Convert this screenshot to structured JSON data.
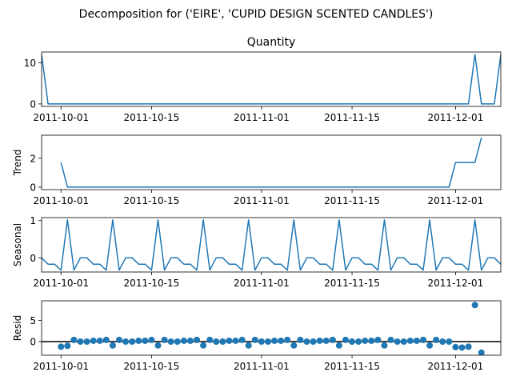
{
  "figure": {
    "title": "Decomposition for ('EIRE', 'CUPID DESIGN SCENTED CANDLES')"
  },
  "chart_data": [
    {
      "type": "line",
      "name": "observed",
      "title": "Quantity",
      "ylabel": "",
      "xlim": [
        "2011-09-28",
        "2011-12-08"
      ],
      "ylim": [
        -0.6,
        12.6
      ],
      "yticks": [
        0,
        10
      ],
      "xticks": [
        "2011-10-01",
        "2011-10-15",
        "2011-11-01",
        "2011-11-15",
        "2011-12-01"
      ],
      "color": "#1f77b4",
      "x": [
        "2011-09-28",
        "2011-09-29",
        "2011-09-30",
        "2011-10-01",
        "2011-10-02",
        "2011-10-03",
        "2011-10-04",
        "2011-10-05",
        "2011-10-06",
        "2011-10-07",
        "2011-10-08",
        "2011-10-09",
        "2011-10-10",
        "2011-10-11",
        "2011-10-12",
        "2011-10-13",
        "2011-10-14",
        "2011-10-15",
        "2011-10-16",
        "2011-10-17",
        "2011-10-18",
        "2011-10-19",
        "2011-10-20",
        "2011-10-21",
        "2011-10-22",
        "2011-10-23",
        "2011-10-24",
        "2011-10-25",
        "2011-10-26",
        "2011-10-27",
        "2011-10-28",
        "2011-10-29",
        "2011-10-30",
        "2011-10-31",
        "2011-11-01",
        "2011-11-02",
        "2011-11-03",
        "2011-11-04",
        "2011-11-05",
        "2011-11-06",
        "2011-11-07",
        "2011-11-08",
        "2011-11-09",
        "2011-11-10",
        "2011-11-11",
        "2011-11-12",
        "2011-11-13",
        "2011-11-14",
        "2011-11-15",
        "2011-11-16",
        "2011-11-17",
        "2011-11-18",
        "2011-11-19",
        "2011-11-20",
        "2011-11-21",
        "2011-11-22",
        "2011-11-23",
        "2011-11-24",
        "2011-11-25",
        "2011-11-26",
        "2011-11-27",
        "2011-11-28",
        "2011-11-29",
        "2011-11-30",
        "2011-12-01",
        "2011-12-02",
        "2011-12-03",
        "2011-12-04",
        "2011-12-05",
        "2011-12-06",
        "2011-12-07",
        "2011-12-08"
      ],
      "values": [
        12,
        0,
        0,
        0,
        0,
        0,
        0,
        0,
        0,
        0,
        0,
        0,
        0,
        0,
        0,
        0,
        0,
        0,
        0,
        0,
        0,
        0,
        0,
        0,
        0,
        0,
        0,
        0,
        0,
        0,
        0,
        0,
        0,
        0,
        0,
        0,
        0,
        0,
        0,
        0,
        0,
        0,
        0,
        0,
        0,
        0,
        0,
        0,
        0,
        0,
        0,
        0,
        0,
        0,
        0,
        0,
        0,
        0,
        0,
        0,
        0,
        0,
        0,
        0,
        0,
        0,
        0,
        12,
        0,
        0,
        0,
        12
      ]
    },
    {
      "type": "line",
      "name": "trend",
      "title": "",
      "ylabel": "Trend",
      "xlim": [
        "2011-09-28",
        "2011-12-08"
      ],
      "ylim": [
        -0.17,
        3.6
      ],
      "yticks": [
        0,
        2
      ],
      "xticks": [
        "2011-10-01",
        "2011-10-15",
        "2011-11-01",
        "2011-11-15",
        "2011-12-01"
      ],
      "color": "#1f77b4",
      "x": [
        "2011-10-01",
        "2011-10-02",
        "2011-10-03",
        "2011-10-04",
        "2011-10-05",
        "2011-10-06",
        "2011-10-07",
        "2011-10-08",
        "2011-10-09",
        "2011-10-10",
        "2011-10-11",
        "2011-10-12",
        "2011-10-13",
        "2011-10-14",
        "2011-10-15",
        "2011-10-16",
        "2011-10-17",
        "2011-10-18",
        "2011-10-19",
        "2011-10-20",
        "2011-10-21",
        "2011-10-22",
        "2011-10-23",
        "2011-10-24",
        "2011-10-25",
        "2011-10-26",
        "2011-10-27",
        "2011-10-28",
        "2011-10-29",
        "2011-10-30",
        "2011-10-31",
        "2011-11-01",
        "2011-11-02",
        "2011-11-03",
        "2011-11-04",
        "2011-11-05",
        "2011-11-06",
        "2011-11-07",
        "2011-11-08",
        "2011-11-09",
        "2011-11-10",
        "2011-11-11",
        "2011-11-12",
        "2011-11-13",
        "2011-11-14",
        "2011-11-15",
        "2011-11-16",
        "2011-11-17",
        "2011-11-18",
        "2011-11-19",
        "2011-11-20",
        "2011-11-21",
        "2011-11-22",
        "2011-11-23",
        "2011-11-24",
        "2011-11-25",
        "2011-11-26",
        "2011-11-27",
        "2011-11-28",
        "2011-11-29",
        "2011-11-30",
        "2011-12-01",
        "2011-12-02",
        "2011-12-03",
        "2011-12-04",
        "2011-12-05"
      ],
      "values": [
        1.71,
        0,
        0,
        0,
        0,
        0,
        0,
        0,
        0,
        0,
        0,
        0,
        0,
        0,
        0,
        0,
        0,
        0,
        0,
        0,
        0,
        0,
        0,
        0,
        0,
        0,
        0,
        0,
        0,
        0,
        0,
        0,
        0,
        0,
        0,
        0,
        0,
        0,
        0,
        0,
        0,
        0,
        0,
        0,
        0,
        0,
        0,
        0,
        0,
        0,
        0,
        0,
        0,
        0,
        0,
        0,
        0,
        0,
        0,
        0,
        0,
        1.71,
        1.71,
        1.71,
        1.71,
        3.43
      ]
    },
    {
      "type": "line",
      "name": "seasonal",
      "title": "",
      "ylabel": "Seasonal",
      "xlim": [
        "2011-09-28",
        "2011-12-08"
      ],
      "ylim": [
        -0.38,
        1.08
      ],
      "yticks": [
        0,
        1
      ],
      "xticks": [
        "2011-10-01",
        "2011-10-15",
        "2011-11-01",
        "2011-11-15",
        "2011-12-01"
      ],
      "color": "#1f77b4",
      "pattern_start": "2011-09-28",
      "pattern": [
        0,
        -0.17,
        -0.17,
        -0.33,
        1.02,
        -0.33,
        0
      ],
      "repeat_to": "2011-12-08"
    },
    {
      "type": "scatter",
      "name": "resid",
      "title": "",
      "ylabel": "Resid",
      "xlim": [
        "2011-09-28",
        "2011-12-08"
      ],
      "ylim": [
        -3.2,
        9.6
      ],
      "yticks": [
        0,
        5
      ],
      "xticks": [
        "2011-10-01",
        "2011-10-15",
        "2011-11-01",
        "2011-11-15",
        "2011-12-01"
      ],
      "color": "#1f77b4",
      "baseline": 0,
      "x": [
        "2011-10-01",
        "2011-10-02",
        "2011-10-03",
        "2011-10-04",
        "2011-10-05",
        "2011-10-06",
        "2011-10-07",
        "2011-10-08",
        "2011-10-09",
        "2011-10-10",
        "2011-10-11",
        "2011-10-12",
        "2011-10-13",
        "2011-10-14",
        "2011-10-15",
        "2011-10-16",
        "2011-10-17",
        "2011-10-18",
        "2011-10-19",
        "2011-10-20",
        "2011-10-21",
        "2011-10-22",
        "2011-10-23",
        "2011-10-24",
        "2011-10-25",
        "2011-10-26",
        "2011-10-27",
        "2011-10-28",
        "2011-10-29",
        "2011-10-30",
        "2011-10-31",
        "2011-11-01",
        "2011-11-02",
        "2011-11-03",
        "2011-11-04",
        "2011-11-05",
        "2011-11-06",
        "2011-11-07",
        "2011-11-08",
        "2011-11-09",
        "2011-11-10",
        "2011-11-11",
        "2011-11-12",
        "2011-11-13",
        "2011-11-14",
        "2011-11-15",
        "2011-11-16",
        "2011-11-17",
        "2011-11-18",
        "2011-11-19",
        "2011-11-20",
        "2011-11-21",
        "2011-11-22",
        "2011-11-23",
        "2011-11-24",
        "2011-11-25",
        "2011-11-26",
        "2011-11-27",
        "2011-11-28",
        "2011-11-29",
        "2011-11-30",
        "2011-12-01",
        "2011-12-02",
        "2011-12-03",
        "2011-12-04",
        "2011-12-05"
      ],
      "values": [
        -1.2,
        -1.0,
        0.4,
        0.0,
        0.0,
        0.2,
        0.2,
        0.4,
        -0.9,
        0.4,
        0.0,
        0.0,
        0.2,
        0.2,
        0.4,
        -0.9,
        0.4,
        0.0,
        0.0,
        0.2,
        0.2,
        0.4,
        -0.9,
        0.4,
        0.0,
        0.0,
        0.2,
        0.2,
        0.4,
        -0.9,
        0.4,
        0.0,
        0.0,
        0.2,
        0.2,
        0.4,
        -0.9,
        0.4,
        0.0,
        0.0,
        0.2,
        0.2,
        0.4,
        -0.9,
        0.4,
        0.0,
        0.0,
        0.2,
        0.2,
        0.4,
        -0.9,
        0.4,
        0.0,
        0.0,
        0.2,
        0.2,
        0.4,
        -0.9,
        0.4,
        0.0,
        0.0,
        -1.3,
        -1.4,
        -1.2,
        8.6,
        -2.6
      ]
    }
  ]
}
